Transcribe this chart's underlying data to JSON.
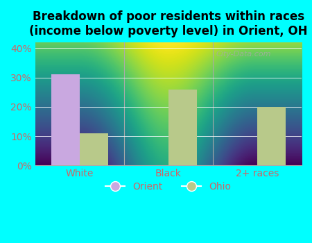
{
  "title": "Breakdown of poor residents within races\n(income below poverty level) in Orient, OH",
  "categories": [
    "White",
    "Black",
    "2+ races"
  ],
  "orient_values": [
    0.31,
    0.0,
    0.0
  ],
  "ohio_values": [
    0.11,
    0.26,
    0.2
  ],
  "orient_color": "#c9a8e0",
  "ohio_color": "#b8c98a",
  "bar_width": 0.32,
  "ylim": [
    0,
    0.42
  ],
  "yticks": [
    0.0,
    0.1,
    0.2,
    0.3,
    0.4
  ],
  "yticklabels": [
    "0%",
    "10%",
    "20%",
    "30%",
    "40%"
  ],
  "background_color": "#00ffff",
  "plot_bg_top": "#e8f5f0",
  "plot_bg_bottom": "#d8efd8",
  "title_fontsize": 12,
  "tick_fontsize": 10,
  "legend_fontsize": 10,
  "tick_color": "#cc6666",
  "watermark": "City-Data.com"
}
